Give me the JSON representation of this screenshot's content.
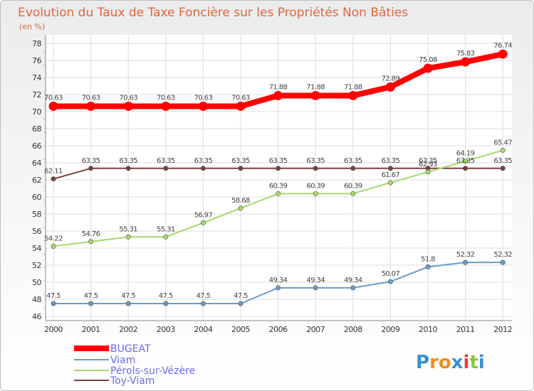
{
  "chart_data": {
    "type": "line",
    "title": "Evolution du Taux de Taxe Foncière sur les Propriétés Non Bâties",
    "subtitle": "(en %)",
    "x": [
      "2000",
      "2001",
      "2002",
      "2003",
      "2004",
      "2005",
      "2006",
      "2007",
      "2008",
      "2009",
      "2010",
      "2011",
      "2012"
    ],
    "yticks": [
      46,
      48,
      50,
      52,
      54,
      56,
      58,
      60,
      62,
      64,
      66,
      68,
      70,
      72,
      74,
      76,
      78
    ],
    "ylim": [
      45.5,
      79
    ],
    "grid": true,
    "legend_position": "bottom-left",
    "series": [
      {
        "name": "BUGEAT",
        "color": "#ff0000",
        "values": [
          70.63,
          70.63,
          70.63,
          70.63,
          70.63,
          70.63,
          71.88,
          71.88,
          71.88,
          72.89,
          75.08,
          75.83,
          76.74
        ],
        "labels": [
          "70.63",
          "70.63",
          "70.63",
          "70.63",
          "70.63",
          "70.63",
          "71.88",
          "71.88",
          "71.88",
          "72.89",
          "75.08",
          "75.83",
          "76.74"
        ]
      },
      {
        "name": "Viam",
        "color": "#6b9bc8",
        "values": [
          47.5,
          47.5,
          47.5,
          47.5,
          47.5,
          47.5,
          49.34,
          49.34,
          49.34,
          50.07,
          51.8,
          52.32,
          52.32
        ],
        "labels": [
          "47.5",
          "47.5",
          "47.5",
          "47.5",
          "47.5",
          "47.5",
          "49.34",
          "49.34",
          "49.34",
          "50.07",
          "51.8",
          "52.32",
          "52.32"
        ]
      },
      {
        "name": "Pérols-sur-Vézère",
        "color": "#a6d96a",
        "values": [
          54.22,
          54.76,
          55.31,
          55.31,
          56.97,
          58.68,
          60.39,
          60.39,
          60.39,
          61.67,
          62.93,
          64.19,
          65.47
        ],
        "labels": [
          "54.22",
          "54.76",
          "55.31",
          "55.31",
          "56.97",
          "58.68",
          "60.39",
          "60.39",
          "60.39",
          "61.67",
          "62.93",
          "64.19",
          "65.47"
        ]
      },
      {
        "name": "Toy-Viam",
        "color": "#7b3f3f",
        "values": [
          62.11,
          63.35,
          63.35,
          63.35,
          63.35,
          63.35,
          63.35,
          63.35,
          63.35,
          63.35,
          63.35,
          63.35,
          63.35
        ],
        "labels": [
          "62.11",
          "63.35",
          "63.35",
          "63.35",
          "63.35",
          "63.35",
          "63.35",
          "63.35",
          "63.35",
          "63.35",
          "63.35",
          "63.35",
          "63.35"
        ]
      }
    ]
  },
  "legend": {
    "items": [
      {
        "name": "BUGEAT",
        "color": "#ff0000"
      },
      {
        "name": "Viam",
        "color": "#6b9bc8"
      },
      {
        "name": "Pérols-sur-Vézère",
        "color": "#a6d96a"
      },
      {
        "name": "Toy-Viam",
        "color": "#7b3f3f"
      }
    ],
    "text_color": "#6a6af0"
  },
  "logo": {
    "letters": [
      "P",
      "r",
      "o",
      "x",
      "i",
      "t",
      "i"
    ],
    "colors": [
      "#3a8fd1",
      "#f08c1f",
      "#f08c1f",
      "#3a8fd1",
      "#e83c3c",
      "#8cc63f",
      "#3a8fd1"
    ]
  }
}
